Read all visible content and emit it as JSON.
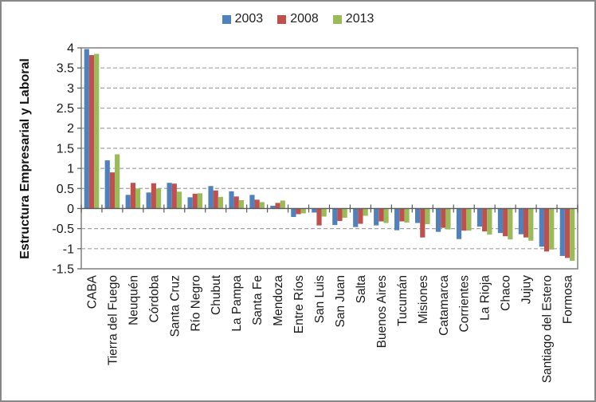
{
  "figure": {
    "background": "#ffffff",
    "border_color": "#878787"
  },
  "chart_data": {
    "type": "bar",
    "title": "",
    "xlabel": "",
    "ylabel": "Estructura Empresarial y Laboral",
    "ylim": [
      -1.5,
      4
    ],
    "yticks": [
      "4",
      "3.5",
      "3",
      "2.5",
      "2",
      "1.5",
      "1",
      "0.5",
      "0",
      "-0.5",
      "-1",
      "-1.5"
    ],
    "grid": "horizontal-dashed",
    "legend_position": "top-center",
    "gridline_color": "#a3a3a3",
    "axis_color": "#595959",
    "frame_color": "#808080",
    "text_color": "#1a1a1a",
    "categories": [
      "CABA",
      "Tierra del Fuego",
      "Neuquén",
      "Córdoba",
      "Santa Cruz",
      "Río Negro",
      "Chubut",
      "La Pampa",
      "Santa Fe",
      "Mendoza",
      "Entre Ríos",
      "San Luis",
      "San Juan",
      "Salta",
      "Buenos Aires",
      "Tucumán",
      "Misiones",
      "Catamarca",
      "Corrientes",
      "La Rioja",
      "Chaco",
      "Jujuy",
      "Santiago del Estero",
      "Formosa"
    ],
    "series": [
      {
        "name": "2003",
        "color": "#4F81BD",
        "values": [
          3.97,
          1.2,
          0.34,
          0.4,
          0.64,
          0.28,
          0.56,
          0.43,
          0.34,
          0.07,
          -0.21,
          -0.1,
          -0.41,
          -0.46,
          -0.42,
          -0.54,
          -0.36,
          -0.58,
          -0.76,
          -0.45,
          -0.61,
          -0.64,
          -0.95,
          -1.18
        ]
      },
      {
        "name": "2008",
        "color": "#C0504D",
        "values": [
          3.82,
          0.9,
          0.64,
          0.63,
          0.62,
          0.37,
          0.45,
          0.3,
          0.22,
          0.14,
          -0.14,
          -0.42,
          -0.31,
          -0.38,
          -0.32,
          -0.32,
          -0.72,
          -0.48,
          -0.55,
          -0.57,
          -0.69,
          -0.72,
          -1.07,
          -1.23
        ]
      },
      {
        "name": "2013",
        "color": "#9BBB59",
        "values": [
          3.85,
          1.35,
          0.5,
          0.5,
          0.42,
          0.38,
          0.29,
          0.21,
          0.16,
          0.2,
          -0.12,
          -0.2,
          -0.23,
          -0.18,
          -0.36,
          -0.35,
          -0.39,
          -0.52,
          -0.55,
          -0.65,
          -0.77,
          -0.8,
          -1.02,
          -1.3
        ]
      }
    ]
  }
}
